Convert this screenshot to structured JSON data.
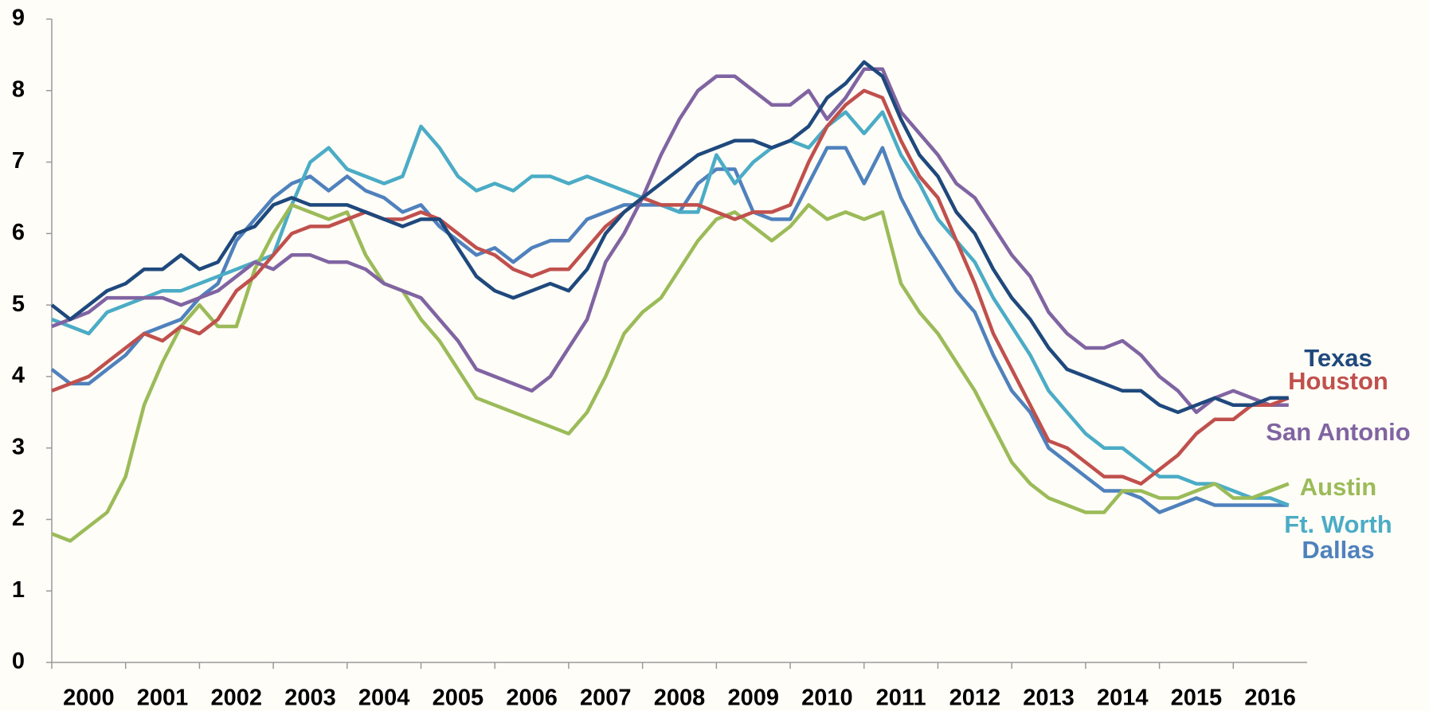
{
  "chart_data": {
    "type": "line",
    "x": [
      2000,
      2000.25,
      2000.5,
      2000.75,
      2001,
      2001.25,
      2001.5,
      2001.75,
      2002,
      2002.25,
      2002.5,
      2002.75,
      2003,
      2003.25,
      2003.5,
      2003.75,
      2004,
      2004.25,
      2004.5,
      2004.75,
      2005,
      2005.25,
      2005.5,
      2005.75,
      2006,
      2006.25,
      2006.5,
      2006.75,
      2007,
      2007.25,
      2007.5,
      2007.75,
      2008,
      2008.25,
      2008.5,
      2008.75,
      2009,
      2009.25,
      2009.5,
      2009.75,
      2010,
      2010.25,
      2010.5,
      2010.75,
      2011,
      2011.25,
      2011.5,
      2011.75,
      2012,
      2012.25,
      2012.5,
      2012.75,
      2013,
      2013.25,
      2013.5,
      2013.75,
      2014,
      2014.25,
      2014.5,
      2014.75,
      2015,
      2015.25,
      2015.5,
      2015.75,
      2016,
      2016.25,
      2016.5,
      2016.75
    ],
    "series": [
      {
        "name": "Texas",
        "color": "#1f497d",
        "values": [
          5.0,
          4.8,
          5.0,
          5.2,
          5.3,
          5.5,
          5.5,
          5.7,
          5.5,
          5.6,
          6.0,
          6.1,
          6.4,
          6.5,
          6.4,
          6.4,
          6.4,
          6.3,
          6.2,
          6.1,
          6.2,
          6.2,
          5.8,
          5.4,
          5.2,
          5.1,
          5.2,
          5.3,
          5.2,
          5.5,
          6.0,
          6.3,
          6.5,
          6.7,
          6.9,
          7.1,
          7.2,
          7.3,
          7.3,
          7.2,
          7.3,
          7.5,
          7.9,
          8.1,
          8.4,
          8.2,
          7.6,
          7.1,
          6.8,
          6.3,
          6.0,
          5.5,
          5.1,
          4.8,
          4.4,
          4.1,
          4.0,
          3.9,
          3.8,
          3.8,
          3.6,
          3.5,
          3.6,
          3.7,
          3.6,
          3.6,
          3.7,
          3.7
        ]
      },
      {
        "name": "Houston",
        "color": "#c0504d",
        "values": [
          3.8,
          3.9,
          4.0,
          4.2,
          4.4,
          4.6,
          4.5,
          4.7,
          4.6,
          4.8,
          5.2,
          5.4,
          5.7,
          6.0,
          6.1,
          6.1,
          6.2,
          6.3,
          6.2,
          6.2,
          6.3,
          6.2,
          6.0,
          5.8,
          5.7,
          5.5,
          5.4,
          5.5,
          5.5,
          5.8,
          6.1,
          6.3,
          6.5,
          6.4,
          6.4,
          6.4,
          6.3,
          6.2,
          6.3,
          6.3,
          6.4,
          7.0,
          7.5,
          7.8,
          8.0,
          7.9,
          7.3,
          6.8,
          6.5,
          5.9,
          5.3,
          4.6,
          4.1,
          3.6,
          3.1,
          3.0,
          2.8,
          2.6,
          2.6,
          2.5,
          2.7,
          2.9,
          3.2,
          3.4,
          3.4,
          3.6,
          3.6,
          3.7
        ]
      },
      {
        "name": "San Antonio",
        "color": "#8064a2",
        "values": [
          4.7,
          4.8,
          4.9,
          5.1,
          5.1,
          5.1,
          5.1,
          5.0,
          5.1,
          5.2,
          5.4,
          5.6,
          5.5,
          5.7,
          5.7,
          5.6,
          5.6,
          5.5,
          5.3,
          5.2,
          5.1,
          4.8,
          4.5,
          4.1,
          4.0,
          3.9,
          3.8,
          4.0,
          4.4,
          4.8,
          5.6,
          6.0,
          6.5,
          7.1,
          7.6,
          8.0,
          8.2,
          8.2,
          8.0,
          7.8,
          7.8,
          8.0,
          7.6,
          7.9,
          8.3,
          8.3,
          7.7,
          7.4,
          7.1,
          6.7,
          6.5,
          6.1,
          5.7,
          5.4,
          4.9,
          4.6,
          4.4,
          4.4,
          4.5,
          4.3,
          4.0,
          3.8,
          3.5,
          3.7,
          3.8,
          3.7,
          3.6,
          3.6
        ]
      },
      {
        "name": "Austin",
        "color": "#9bbb59",
        "values": [
          1.8,
          1.7,
          1.9,
          2.1,
          2.6,
          3.6,
          4.2,
          4.7,
          5.0,
          4.7,
          4.7,
          5.5,
          6.0,
          6.4,
          6.3,
          6.2,
          6.3,
          5.7,
          5.3,
          5.2,
          4.8,
          4.5,
          4.1,
          3.7,
          3.6,
          3.5,
          3.4,
          3.3,
          3.2,
          3.5,
          4.0,
          4.6,
          4.9,
          5.1,
          5.5,
          5.9,
          6.2,
          6.3,
          6.1,
          5.9,
          6.1,
          6.4,
          6.2,
          6.3,
          6.2,
          6.3,
          5.3,
          4.9,
          4.6,
          4.2,
          3.8,
          3.3,
          2.8,
          2.5,
          2.3,
          2.2,
          2.1,
          2.1,
          2.4,
          2.4,
          2.3,
          2.3,
          2.4,
          2.5,
          2.3,
          2.3,
          2.4,
          2.5
        ]
      },
      {
        "name": "Ft. Worth",
        "color": "#4bacc6",
        "values": [
          4.8,
          4.7,
          4.6,
          4.9,
          5.0,
          5.1,
          5.2,
          5.2,
          5.3,
          5.4,
          5.5,
          5.6,
          5.7,
          6.4,
          7.0,
          7.2,
          6.9,
          6.8,
          6.7,
          6.8,
          7.5,
          7.2,
          6.8,
          6.6,
          6.7,
          6.6,
          6.8,
          6.8,
          6.7,
          6.8,
          6.7,
          6.6,
          6.5,
          6.4,
          6.3,
          6.3,
          7.1,
          6.7,
          7.0,
          7.2,
          7.3,
          7.2,
          7.5,
          7.7,
          7.4,
          7.7,
          7.1,
          6.7,
          6.2,
          5.9,
          5.6,
          5.1,
          4.7,
          4.3,
          3.8,
          3.5,
          3.2,
          3.0,
          3.0,
          2.8,
          2.6,
          2.6,
          2.5,
          2.5,
          2.4,
          2.3,
          2.3,
          2.2
        ]
      },
      {
        "name": "Dallas",
        "color": "#4f81bd",
        "values": [
          4.1,
          3.9,
          3.9,
          4.1,
          4.3,
          4.6,
          4.7,
          4.8,
          5.1,
          5.3,
          5.9,
          6.2,
          6.5,
          6.7,
          6.8,
          6.6,
          6.8,
          6.6,
          6.5,
          6.3,
          6.4,
          6.1,
          5.9,
          5.7,
          5.8,
          5.6,
          5.8,
          5.9,
          5.9,
          6.2,
          6.3,
          6.4,
          6.4,
          6.4,
          6.3,
          6.7,
          6.9,
          6.9,
          6.3,
          6.2,
          6.2,
          6.7,
          7.2,
          7.2,
          6.7,
          7.2,
          6.5,
          6.0,
          5.6,
          5.2,
          4.9,
          4.3,
          3.8,
          3.5,
          3.0,
          2.8,
          2.6,
          2.4,
          2.4,
          2.3,
          2.1,
          2.2,
          2.3,
          2.2,
          2.2,
          2.2,
          2.2,
          2.2
        ]
      }
    ],
    "xlim": [
      2000,
      2017
    ],
    "xticks": [
      2000,
      2001,
      2002,
      2003,
      2004,
      2005,
      2006,
      2007,
      2008,
      2009,
      2010,
      2011,
      2012,
      2013,
      2014,
      2015,
      2016
    ],
    "ylim": [
      0,
      9
    ],
    "yticks": [
      0,
      1,
      2,
      3,
      4,
      5,
      6,
      7,
      8,
      9
    ],
    "grid": false
  }
}
